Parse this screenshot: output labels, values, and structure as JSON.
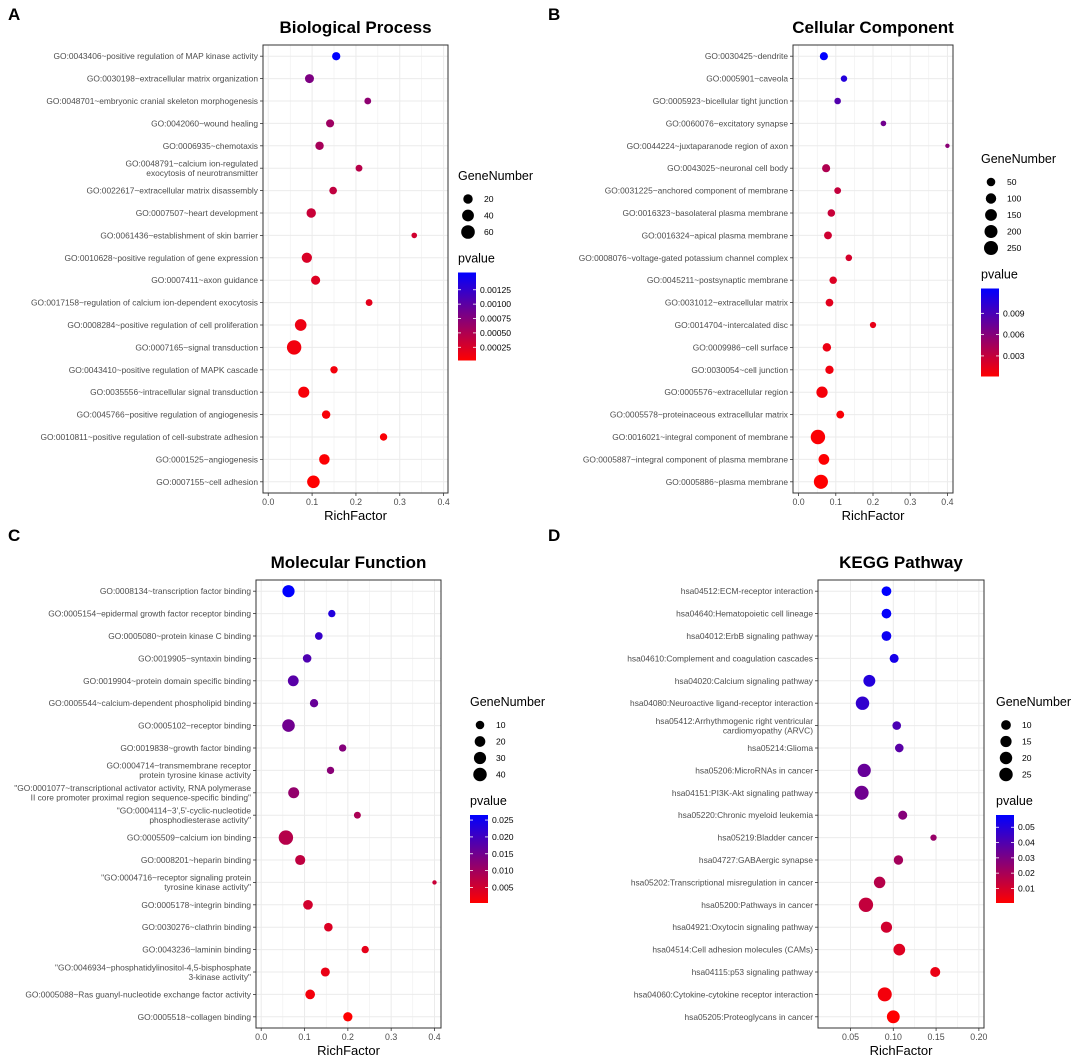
{
  "colors": {
    "high": "#ff0000",
    "low": "#0000ff",
    "panel_bg": "#ffffff",
    "grid": "#ebebeb",
    "border": "#333333"
  },
  "legend_titles": {
    "size": "GeneNumber",
    "color": "pvalue"
  },
  "chart_data": [
    {
      "letter": "A",
      "type": "scatter",
      "title": "Biological Process",
      "xlabel": "RichFactor",
      "xlim": [
        -0.012,
        0.41
      ],
      "xticks": [
        "0.0",
        "0.1",
        "0.2",
        "0.3",
        "0.4"
      ],
      "size_legend": [
        "20",
        "40",
        "60"
      ],
      "size_range": [
        3,
        70
      ],
      "color_legend": [
        "0.00125",
        "0.00100",
        "0.00075",
        "0.00050",
        "0.00025"
      ],
      "color_range": [
        2e-05,
        0.00155
      ],
      "color_ticks": [
        0.00125,
        0.001,
        0.00075,
        0.0005,
        0.00025
      ],
      "points": [
        {
          "label": [
            "GO:0043406~positive regulation of MAP kinase activity"
          ],
          "x": 0.155,
          "genes": 13,
          "p": 0.00155
        },
        {
          "label": [
            "GO:0030198~extracellular matrix organization"
          ],
          "x": 0.094,
          "genes": 17,
          "p": 0.0008
        },
        {
          "label": [
            "GO:0048701~embryonic cranial skeleton morphogenesis"
          ],
          "x": 0.227,
          "genes": 7,
          "p": 0.0007
        },
        {
          "label": [
            "GO:0042060~wound healing"
          ],
          "x": 0.141,
          "genes": 12,
          "p": 0.0006
        },
        {
          "label": [
            "GO:0006935~chemotaxis"
          ],
          "x": 0.117,
          "genes": 14,
          "p": 0.00055
        },
        {
          "label": [
            "GO:0048791~calcium ion-regulated",
            "exocytosis of neurotransmitter"
          ],
          "x": 0.207,
          "genes": 7,
          "p": 0.00045
        },
        {
          "label": [
            "GO:0022617~extracellular matrix disassembly"
          ],
          "x": 0.148,
          "genes": 10,
          "p": 0.0004
        },
        {
          "label": [
            "GO:0007507~heart development"
          ],
          "x": 0.098,
          "genes": 20,
          "p": 0.00035
        },
        {
          "label": [
            "GO:0061436~establishment of skin barrier"
          ],
          "x": 0.333,
          "genes": 4,
          "p": 0.0003
        },
        {
          "label": [
            "GO:0010628~positive regulation of gene expression"
          ],
          "x": 0.088,
          "genes": 26,
          "p": 0.00025
        },
        {
          "label": [
            "GO:0007411~axon guidance"
          ],
          "x": 0.108,
          "genes": 18,
          "p": 0.00022
        },
        {
          "label": [
            "GO:0017158~regulation of calcium ion-dependent exocytosis"
          ],
          "x": 0.23,
          "genes": 7,
          "p": 0.00018
        },
        {
          "label": [
            "GO:0008284~positive regulation of cell proliferation"
          ],
          "x": 0.074,
          "genes": 38,
          "p": 0.00013
        },
        {
          "label": [
            "GO:0007165~signal transduction"
          ],
          "x": 0.059,
          "genes": 70,
          "p": 0.0001
        },
        {
          "label": [
            "GO:0043410~positive regulation of MAPK cascade"
          ],
          "x": 0.15,
          "genes": 9,
          "p": 9e-05
        },
        {
          "label": [
            "GO:0035556~intracellular signal transduction"
          ],
          "x": 0.081,
          "genes": 33,
          "p": 7e-05
        },
        {
          "label": [
            "GO:0045766~positive regulation of angiogenesis"
          ],
          "x": 0.132,
          "genes": 14,
          "p": 6e-05
        },
        {
          "label": [
            "GO:0010811~positive regulation of cell-substrate adhesion"
          ],
          "x": 0.263,
          "genes": 9,
          "p": 5e-05
        },
        {
          "label": [
            "GO:0001525~angiogenesis"
          ],
          "x": 0.128,
          "genes": 28,
          "p": 4e-05
        },
        {
          "label": [
            "GO:0007155~cell adhesion"
          ],
          "x": 0.103,
          "genes": 48,
          "p": 2e-05
        }
      ]
    },
    {
      "letter": "B",
      "type": "scatter",
      "title": "Cellular Component",
      "xlabel": "RichFactor",
      "xlim": [
        -0.015,
        0.415
      ],
      "xticks": [
        "0.0",
        "0.1",
        "0.2",
        "0.3",
        "0.4"
      ],
      "size_legend": [
        "50",
        "100",
        "150",
        "200",
        "250"
      ],
      "size_range": [
        3,
        270
      ],
      "color_legend": [
        "0.009",
        "0.006",
        "0.003"
      ],
      "color_range": [
        0.0001,
        0.0125
      ],
      "color_ticks": [
        0.009,
        0.006,
        0.003
      ],
      "points": [
        {
          "label": [
            "GO:0030425~dendrite"
          ],
          "x": 0.068,
          "genes": 40,
          "p": 0.0125
        },
        {
          "label": [
            "GO:0005901~caveola"
          ],
          "x": 0.122,
          "genes": 14,
          "p": 0.0108
        },
        {
          "label": [
            "GO:0005923~bicellular tight junction"
          ],
          "x": 0.105,
          "genes": 16,
          "p": 0.0085
        },
        {
          "label": [
            "GO:0060076~excitatory synapse"
          ],
          "x": 0.228,
          "genes": 7,
          "p": 0.007
        },
        {
          "label": [
            "GO:0044224~juxtaparanode region of axon"
          ],
          "x": 0.4,
          "genes": 3,
          "p": 0.0058
        },
        {
          "label": [
            "GO:0043025~neuronal cell body"
          ],
          "x": 0.074,
          "genes": 40,
          "p": 0.004
        },
        {
          "label": [
            "GO:0031225~anchored component of membrane"
          ],
          "x": 0.105,
          "genes": 18,
          "p": 0.003
        },
        {
          "label": [
            "GO:0016323~basolateral plasma membrane"
          ],
          "x": 0.088,
          "genes": 30,
          "p": 0.0028
        },
        {
          "label": [
            "GO:0016324~apical plasma membrane"
          ],
          "x": 0.079,
          "genes": 35,
          "p": 0.0025
        },
        {
          "label": [
            "GO:0008076~voltage-gated potassium channel complex"
          ],
          "x": 0.135,
          "genes": 16,
          "p": 0.0022
        },
        {
          "label": [
            "GO:0045211~postsynaptic membrane"
          ],
          "x": 0.093,
          "genes": 28,
          "p": 0.0018
        },
        {
          "label": [
            "GO:0031012~extracellular matrix"
          ],
          "x": 0.083,
          "genes": 33,
          "p": 0.0015
        },
        {
          "label": [
            "GO:0014704~intercalated disc"
          ],
          "x": 0.2,
          "genes": 12,
          "p": 0.0012
        },
        {
          "label": [
            "GO:0009986~cell surface"
          ],
          "x": 0.076,
          "genes": 48,
          "p": 0.001
        },
        {
          "label": [
            "GO:0030054~cell junction"
          ],
          "x": 0.083,
          "genes": 45,
          "p": 0.0008
        },
        {
          "label": [
            "GO:0005576~extracellular region"
          ],
          "x": 0.063,
          "genes": 130,
          "p": 0.0006
        },
        {
          "label": [
            "GO:0005578~proteinaceous extracellular matrix"
          ],
          "x": 0.112,
          "genes": 35,
          "p": 0.0004
        },
        {
          "label": [
            "GO:0016021~integral component of membrane"
          ],
          "x": 0.052,
          "genes": 270,
          "p": 0.0003
        },
        {
          "label": [
            "GO:0005887~integral component of plasma membrane"
          ],
          "x": 0.068,
          "genes": 110,
          "p": 0.0002
        },
        {
          "label": [
            "GO:0005886~plasma membrane"
          ],
          "x": 0.06,
          "genes": 255,
          "p": 0.0001
        }
      ]
    },
    {
      "letter": "C",
      "type": "scatter",
      "title": "Molecular Function",
      "xlabel": "RichFactor",
      "xlim": [
        -0.012,
        0.415
      ],
      "xticks": [
        "0.0",
        "0.1",
        "0.2",
        "0.3",
        "0.4"
      ],
      "size_legend": [
        "10",
        "20",
        "30",
        "40"
      ],
      "size_range": [
        2,
        48
      ],
      "color_legend": [
        "0.025",
        "0.020",
        "0.015",
        "0.010",
        "0.005"
      ],
      "color_range": [
        0.0004,
        0.0265
      ],
      "color_ticks": [
        0.025,
        0.02,
        0.015,
        0.01,
        0.005
      ],
      "points": [
        {
          "label": [
            "GO:0008134~transcription factor binding"
          ],
          "x": 0.063,
          "genes": 30,
          "p": 0.0265
        },
        {
          "label": [
            "GO:0005154~epidermal growth factor receptor binding"
          ],
          "x": 0.163,
          "genes": 6,
          "p": 0.023
        },
        {
          "label": [
            "GO:0005080~protein kinase C binding"
          ],
          "x": 0.133,
          "genes": 7,
          "p": 0.021
        },
        {
          "label": [
            "GO:0019905~syntaxin binding"
          ],
          "x": 0.106,
          "genes": 10,
          "p": 0.0185
        },
        {
          "label": [
            "GO:0019904~protein domain specific binding"
          ],
          "x": 0.074,
          "genes": 21,
          "p": 0.0175
        },
        {
          "label": [
            "GO:0005544~calcium-dependent phospholipid binding"
          ],
          "x": 0.122,
          "genes": 9,
          "p": 0.016
        },
        {
          "label": [
            "GO:0005102~receptor binding"
          ],
          "x": 0.063,
          "genes": 33,
          "p": 0.015
        },
        {
          "label": [
            "GO:0019838~growth factor binding"
          ],
          "x": 0.188,
          "genes": 6,
          "p": 0.013
        },
        {
          "label": [
            "GO:0004714~transmembrane receptor",
            "protein tyrosine kinase activity"
          ],
          "x": 0.16,
          "genes": 6,
          "p": 0.0125
        },
        {
          "label": [
            "\"GO:0001077~transcriptional activator activity, RNA polymerase",
            "II core promoter proximal region sequence-specific binding\""
          ],
          "x": 0.075,
          "genes": 22,
          "p": 0.0115
        },
        {
          "label": [
            "\"GO:0004114~3',5'-cyclic-nucleotide",
            "phosphodiesterase activity\""
          ],
          "x": 0.222,
          "genes": 5,
          "p": 0.009
        },
        {
          "label": [
            "GO:0005509~calcium ion binding"
          ],
          "x": 0.057,
          "genes": 48,
          "p": 0.008
        },
        {
          "label": [
            "GO:0008201~heparin binding"
          ],
          "x": 0.09,
          "genes": 17,
          "p": 0.007
        },
        {
          "label": [
            "\"GO:0004716~receptor signaling protein",
            "tyrosine kinase activity\""
          ],
          "x": 0.4,
          "genes": 2,
          "p": 0.006
        },
        {
          "label": [
            "GO:0005178~integrin binding"
          ],
          "x": 0.108,
          "genes": 15,
          "p": 0.005
        },
        {
          "label": [
            "GO:0030276~clathrin binding"
          ],
          "x": 0.155,
          "genes": 10,
          "p": 0.004
        },
        {
          "label": [
            "GO:0043236~laminin binding"
          ],
          "x": 0.24,
          "genes": 6,
          "p": 0.003
        },
        {
          "label": [
            "\"GO:0046934~phosphatidylinositol-4,5-bisphosphate",
            "3-kinase activity\""
          ],
          "x": 0.148,
          "genes": 12,
          "p": 0.0025
        },
        {
          "label": [
            "GO:0005088~Ras guanyl-nucleotide exchange factor activity"
          ],
          "x": 0.113,
          "genes": 15,
          "p": 0.0015
        },
        {
          "label": [
            "GO:0005518~collagen binding"
          ],
          "x": 0.2,
          "genes": 13,
          "p": 0.0004
        }
      ]
    },
    {
      "letter": "D",
      "type": "scatter",
      "title": "KEGG Pathway",
      "xlabel": "RichFactor",
      "xlim": [
        0.012,
        0.206
      ],
      "xticks": [
        "0.05",
        "0.10",
        "0.15",
        "0.20"
      ],
      "xtick_values": [
        0.05,
        0.1,
        0.15,
        0.2
      ],
      "size_legend": [
        "10",
        "15",
        "20",
        "25"
      ],
      "size_range": [
        2,
        30
      ],
      "color_legend": [
        "0.05",
        "0.04",
        "0.03",
        "0.02",
        "0.01"
      ],
      "color_range": [
        0.0005,
        0.058
      ],
      "color_ticks": [
        0.05,
        0.04,
        0.03,
        0.02,
        0.01
      ],
      "points": [
        {
          "label": [
            "hsa04512:ECM-receptor interaction"
          ],
          "x": 0.092,
          "genes": 10,
          "p": 0.058
        },
        {
          "label": [
            "hsa04640:Hematopoietic cell lineage"
          ],
          "x": 0.092,
          "genes": 10,
          "p": 0.057
        },
        {
          "label": [
            "hsa04012:ErbB signaling pathway"
          ],
          "x": 0.092,
          "genes": 10,
          "p": 0.055
        },
        {
          "label": [
            "hsa04610:Complement and coagulation cascades"
          ],
          "x": 0.101,
          "genes": 8,
          "p": 0.053
        },
        {
          "label": [
            "hsa04020:Calcium signaling pathway"
          ],
          "x": 0.072,
          "genes": 18,
          "p": 0.05
        },
        {
          "label": [
            "hsa04080:Neuroactive ligand-receptor interaction"
          ],
          "x": 0.064,
          "genes": 25,
          "p": 0.047
        },
        {
          "label": [
            "hsa05412:Arrhythmogenic right ventricular",
            "cardiomyopathy (ARVC)"
          ],
          "x": 0.104,
          "genes": 7,
          "p": 0.041
        },
        {
          "label": [
            "hsa05214:Glioma"
          ],
          "x": 0.107,
          "genes": 7,
          "p": 0.038
        },
        {
          "label": [
            "hsa05206:MicroRNAs in cancer"
          ],
          "x": 0.066,
          "genes": 24,
          "p": 0.035
        },
        {
          "label": [
            "hsa04151:PI3K-Akt signaling pathway"
          ],
          "x": 0.063,
          "genes": 28,
          "p": 0.033
        },
        {
          "label": [
            "hsa05220:Chronic myeloid leukemia"
          ],
          "x": 0.111,
          "genes": 8,
          "p": 0.028
        },
        {
          "label": [
            "hsa05219:Bladder cancer"
          ],
          "x": 0.147,
          "genes": 3,
          "p": 0.024
        },
        {
          "label": [
            "hsa04727:GABAergic synapse"
          ],
          "x": 0.106,
          "genes": 9,
          "p": 0.021
        },
        {
          "label": [
            "hsa05202:Transcriptional misregulation in cancer"
          ],
          "x": 0.084,
          "genes": 16,
          "p": 0.017
        },
        {
          "label": [
            "hsa05200:Pathways in cancer"
          ],
          "x": 0.068,
          "genes": 30,
          "p": 0.014
        },
        {
          "label": [
            "hsa04921:Oxytocin signaling pathway"
          ],
          "x": 0.092,
          "genes": 15,
          "p": 0.011
        },
        {
          "label": [
            "hsa04514:Cell adhesion molecules (CAMs)"
          ],
          "x": 0.107,
          "genes": 17,
          "p": 0.008
        },
        {
          "label": [
            "hsa04115:p53 signaling pathway"
          ],
          "x": 0.149,
          "genes": 11,
          "p": 0.005
        },
        {
          "label": [
            "hsa04060:Cytokine-cytokine receptor interaction"
          ],
          "x": 0.09,
          "genes": 28,
          "p": 0.003
        },
        {
          "label": [
            "hsa05205:Proteoglycans in cancer"
          ],
          "x": 0.1,
          "genes": 22,
          "p": 0.0005
        }
      ]
    }
  ]
}
